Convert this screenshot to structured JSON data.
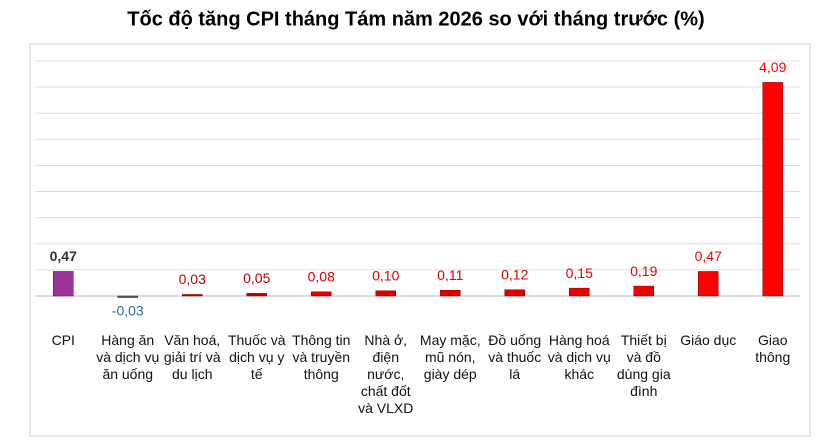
{
  "chart_data": {
    "type": "bar",
    "title": "Tốc độ tăng CPI tháng Tám năm 2026 so với tháng trước (%)",
    "categories": [
      "CPI",
      "Hàng ăn và dịch vụ ăn uống",
      "Văn hoá, giải trí và du lịch",
      "Thuốc và dịch vụ y tế",
      "Thông tin và truyền thông",
      "Nhà ở, điện nước, chất đốt và VLXD",
      "May mặc, mũ nón, giày dép",
      "Đồ uống và thuốc lá",
      "Hàng hoá và dịch vụ khác",
      "Thiết bị và đồ dùng gia đình",
      "Giáo dục",
      "Giao thông"
    ],
    "values": [
      0.47,
      -0.03,
      0.03,
      0.05,
      0.08,
      0.1,
      0.11,
      0.12,
      0.15,
      0.19,
      0.47,
      4.09
    ],
    "value_labels": [
      "0,47",
      "-0,03",
      "0,03",
      "0,05",
      "0,08",
      "0,10",
      "0,11",
      "0,12",
      "0,15",
      "0,19",
      "0,47",
      "4,09"
    ],
    "colors": [
      "#993399",
      "#2e6f8e",
      "#c00000",
      "#c00000",
      "#e00000",
      "#e00000",
      "#e00000",
      "#e00000",
      "#ee0000",
      "#ee0000",
      "#ff0000",
      "#ff0000"
    ],
    "ylim": [
      0,
      4.5
    ],
    "yticks": [
      0,
      0.5,
      1,
      1.5,
      2,
      2.5,
      3,
      3.5,
      4,
      4.5
    ],
    "grid": true
  }
}
